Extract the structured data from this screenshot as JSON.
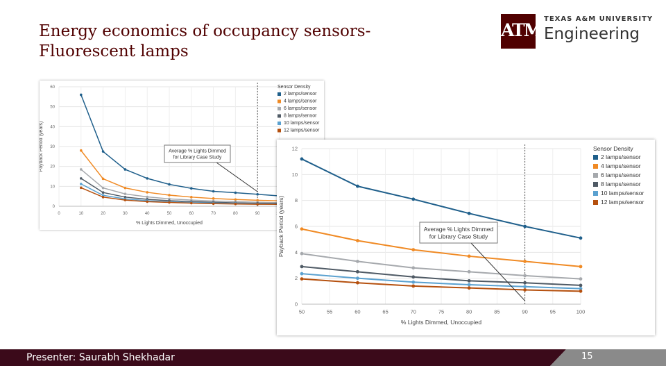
{
  "slide": {
    "title_line1": "Energy economics of occupancy sensors-",
    "title_line2": "Fluorescent lamps",
    "presenter": "Presenter: Saurabh Shekhadar",
    "page_number": "15"
  },
  "logo": {
    "mark": "ATM",
    "university": "TEXAS A&M UNIVERSITY",
    "department": "Engineering",
    "color": "#500000"
  },
  "chart_data": [
    {
      "type": "line",
      "title": "",
      "xlabel": "% Lights Dimmed, Unoccupied",
      "ylabel": "Payback Period (years)",
      "legend_title": "Sensor Density",
      "legend_position": "top-right",
      "grid": true,
      "xlim": [
        0,
        100
      ],
      "ylim": [
        0,
        60
      ],
      "x_ticks": [
        0,
        10,
        20,
        30,
        40,
        50,
        60,
        70,
        80,
        90,
        100
      ],
      "y_ticks": [
        0,
        10,
        20,
        30,
        40,
        50,
        60
      ],
      "annotation": {
        "text_line1": "Average % Lights Dimmed",
        "text_line2": "for Library Case Study",
        "x": 90
      },
      "x": [
        10,
        20,
        30,
        40,
        50,
        60,
        70,
        80,
        90,
        100
      ],
      "series": [
        {
          "name": "2 lamps/sensor",
          "color": "#1f5f8b",
          "values": [
            56,
            27.5,
            18.5,
            14,
            11,
            9,
            7.5,
            6.8,
            6,
            5.2
          ]
        },
        {
          "name": "4 lamps/sensor",
          "color": "#f08a24",
          "values": [
            28,
            13.8,
            9.2,
            7,
            5.6,
            4.6,
            3.9,
            3.4,
            3,
            2.7
          ]
        },
        {
          "name": "6 lamps/sensor",
          "color": "#a6a9ad",
          "values": [
            18.5,
            9.2,
            6.2,
            4.7,
            3.7,
            3.1,
            2.6,
            2.3,
            2,
            1.8
          ]
        },
        {
          "name": "8 lamps/sensor",
          "color": "#4f5a65",
          "values": [
            14,
            6.9,
            4.6,
            3.5,
            2.8,
            2.3,
            2,
            1.7,
            1.5,
            1.4
          ]
        },
        {
          "name": "10 lamps/sensor",
          "color": "#5aa1d0",
          "values": [
            11.2,
            5.5,
            3.7,
            2.8,
            2.2,
            1.85,
            1.6,
            1.4,
            1.2,
            1.1
          ]
        },
        {
          "name": "12 lamps/sensor",
          "color": "#b5500e",
          "values": [
            9.3,
            4.6,
            3.1,
            2.3,
            1.9,
            1.55,
            1.3,
            1.15,
            1,
            0.95
          ]
        }
      ]
    },
    {
      "type": "line",
      "title": "",
      "xlabel": "% Lights Dimmed, Unoccupied",
      "ylabel": "Payback Period (years)",
      "legend_title": "Sensor Density",
      "legend_position": "top-right",
      "grid": true,
      "xlim": [
        50,
        100
      ],
      "ylim": [
        0,
        12
      ],
      "x_ticks": [
        50,
        55,
        60,
        65,
        70,
        75,
        80,
        85,
        90,
        95,
        100
      ],
      "y_ticks": [
        0,
        2,
        4,
        6,
        8,
        10,
        12
      ],
      "annotation": {
        "text_line1": "Average % Lights Dimmed",
        "text_line2": "for Library Case Study",
        "x": 90
      },
      "x": [
        50,
        60,
        70,
        80,
        90,
        100
      ],
      "series": [
        {
          "name": "2 lamps/sensor",
          "color": "#1f5f8b",
          "values": [
            11.2,
            9.1,
            8.1,
            7.0,
            6.0,
            5.1
          ]
        },
        {
          "name": "4 lamps/sensor",
          "color": "#f08a24",
          "values": [
            5.8,
            4.9,
            4.2,
            3.7,
            3.3,
            2.9
          ]
        },
        {
          "name": "6 lamps/sensor",
          "color": "#a6a9ad",
          "values": [
            3.9,
            3.3,
            2.8,
            2.5,
            2.2,
            1.95
          ]
        },
        {
          "name": "8 lamps/sensor",
          "color": "#4f5a65",
          "values": [
            2.9,
            2.5,
            2.1,
            1.8,
            1.65,
            1.45
          ]
        },
        {
          "name": "10 lamps/sensor",
          "color": "#5aa1d0",
          "values": [
            2.35,
            2.0,
            1.7,
            1.5,
            1.35,
            1.2
          ]
        },
        {
          "name": "12 lamps/sensor",
          "color": "#b5500e",
          "values": [
            1.95,
            1.65,
            1.4,
            1.25,
            1.1,
            1.0
          ]
        }
      ]
    }
  ]
}
